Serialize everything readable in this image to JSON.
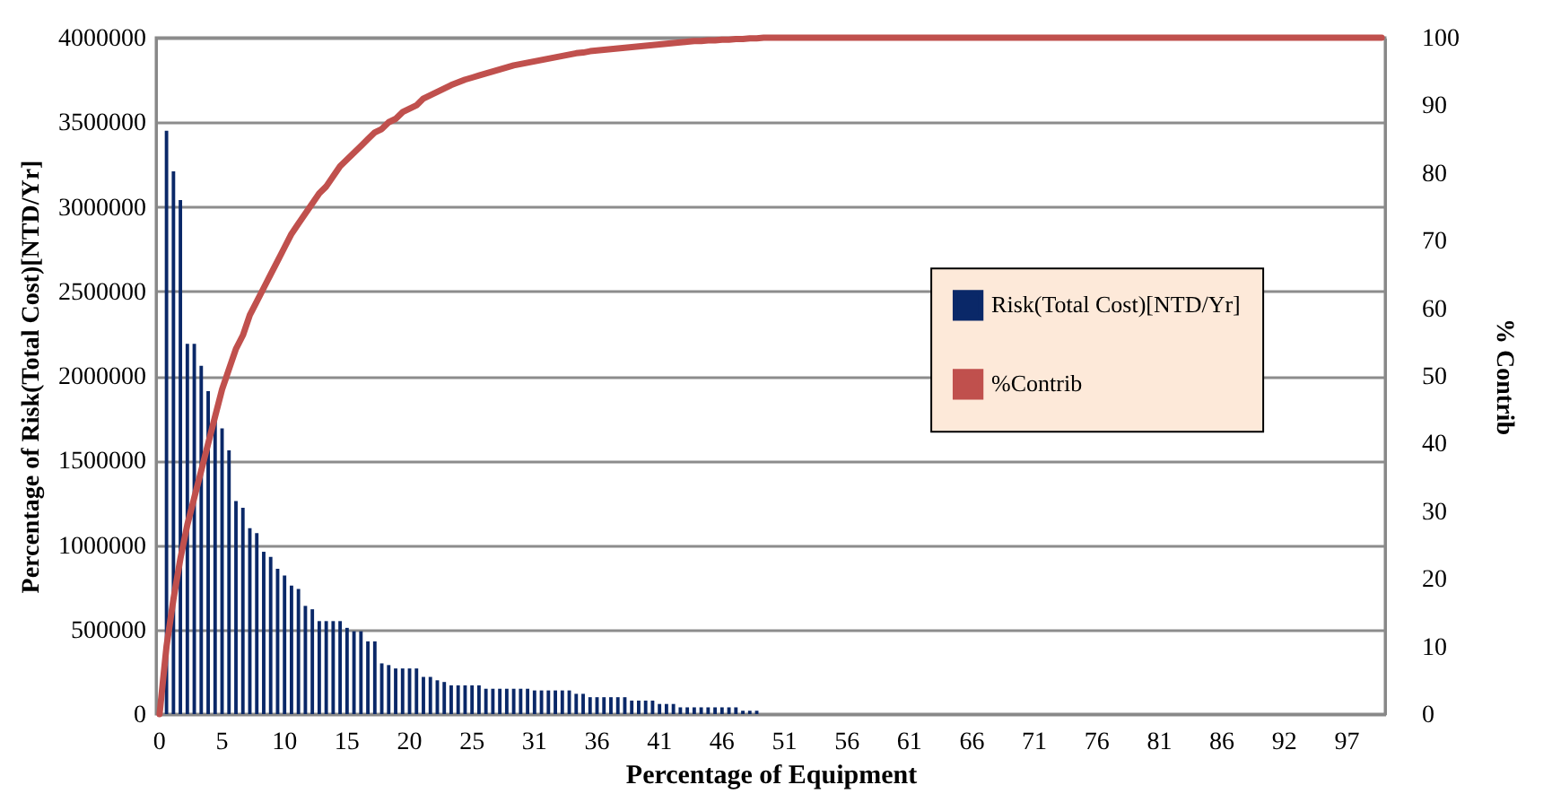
{
  "chart_data": {
    "type": "bar",
    "xlabel": "Percentage of Equipment",
    "ylabel": "Percentage of Risk(Total Cost)[NTD/Yr]",
    "y2label": "% Contrib",
    "categories": [
      "0",
      null,
      null,
      null,
      null,
      null,
      null,
      null,
      null,
      "5",
      null,
      null,
      null,
      null,
      null,
      null,
      null,
      null,
      "10",
      null,
      null,
      null,
      null,
      null,
      null,
      null,
      null,
      "15",
      null,
      null,
      null,
      null,
      null,
      null,
      null,
      null,
      "20",
      null,
      null,
      null,
      null,
      null,
      null,
      null,
      null,
      "25",
      null,
      null,
      null,
      null,
      null,
      null,
      null,
      null,
      "31",
      null,
      null,
      null,
      null,
      null,
      null,
      null,
      null,
      "36",
      null,
      null,
      null,
      null,
      null,
      null,
      null,
      null,
      "41",
      null,
      null,
      null,
      null,
      null,
      null,
      null,
      null,
      "46",
      null,
      null,
      null,
      null,
      null,
      null,
      null,
      null,
      "51",
      null,
      null,
      null,
      null,
      null,
      null,
      null,
      null,
      "56",
      null,
      null,
      null,
      null,
      null,
      null,
      null,
      null,
      "61",
      null,
      null,
      null,
      null,
      null,
      null,
      null,
      null,
      "66",
      null,
      null,
      null,
      null,
      null,
      null,
      null,
      null,
      "71",
      null,
      null,
      null,
      null,
      null,
      null,
      null,
      null,
      "76",
      null,
      null,
      null,
      null,
      null,
      null,
      null,
      null,
      "81",
      null,
      null,
      null,
      null,
      null,
      null,
      null,
      null,
      "86",
      null,
      null,
      null,
      null,
      null,
      null,
      null,
      null,
      "92",
      null,
      null,
      null,
      null,
      null,
      null,
      null,
      null,
      "97",
      null,
      null,
      null,
      null,
      null
    ],
    "series": [
      {
        "name": "Risk(Total Cost)[NTD/Yr]",
        "color": "#0a2868",
        "values": [
          0,
          3450000,
          3210000,
          3040000,
          2190000,
          2190000,
          2060000,
          1910000,
          1750000,
          1690000,
          1560000,
          1260000,
          1220000,
          1100000,
          1070000,
          960000,
          930000,
          860000,
          820000,
          760000,
          740000,
          640000,
          620000,
          550000,
          550000,
          550000,
          550000,
          510000,
          490000,
          490000,
          430000,
          430000,
          300000,
          290000,
          270000,
          270000,
          270000,
          270000,
          220000,
          220000,
          200000,
          190000,
          170000,
          170000,
          170000,
          170000,
          170000,
          150000,
          150000,
          150000,
          150000,
          150000,
          150000,
          150000,
          140000,
          140000,
          140000,
          140000,
          140000,
          140000,
          120000,
          120000,
          100000,
          100000,
          100000,
          100000,
          100000,
          100000,
          80000,
          80000,
          80000,
          80000,
          60000,
          60000,
          60000,
          40000,
          40000,
          40000,
          40000,
          40000,
          40000,
          40000,
          40000,
          40000,
          20000,
          20000,
          20000,
          0,
          0,
          0,
          0,
          0,
          0,
          0,
          0,
          0,
          0,
          0,
          0,
          0,
          0,
          0,
          0,
          0,
          0,
          0,
          0,
          0,
          0,
          0,
          0,
          0,
          0,
          0,
          0,
          0,
          0,
          0,
          0,
          0,
          0,
          0,
          0,
          0,
          0,
          0,
          0,
          0,
          0,
          0,
          0,
          0,
          0,
          0,
          0,
          0,
          0,
          0,
          0,
          0,
          0,
          0,
          0,
          0,
          0,
          0,
          0,
          0,
          0,
          0,
          0,
          0,
          0,
          0,
          0,
          0,
          0,
          0,
          0,
          0,
          0,
          0,
          0,
          0,
          0,
          0,
          0,
          0,
          0,
          0,
          0,
          0,
          0,
          0,
          0,
          0,
          0
        ]
      },
      {
        "name": "%Contrib",
        "type": "line",
        "axis": "y2",
        "color": "#c0504d",
        "values": [
          0,
          10,
          17,
          23,
          28,
          32,
          36,
          40,
          44,
          48,
          51,
          54,
          56,
          59,
          61,
          63,
          65,
          67,
          69,
          71,
          72.5,
          74,
          75.5,
          77,
          78,
          79.5,
          81,
          82,
          83,
          84,
          85,
          86,
          86.5,
          87.5,
          88,
          89,
          89.5,
          90,
          91,
          91.5,
          92,
          92.5,
          93,
          93.4,
          93.8,
          94.1,
          94.4,
          94.7,
          95,
          95.3,
          95.6,
          95.9,
          96.1,
          96.3,
          96.5,
          96.7,
          96.9,
          97.1,
          97.3,
          97.5,
          97.7,
          97.8,
          98,
          98.1,
          98.2,
          98.3,
          98.4,
          98.5,
          98.6,
          98.7,
          98.8,
          98.9,
          99,
          99.1,
          99.2,
          99.3,
          99.4,
          99.5,
          99.5,
          99.6,
          99.6,
          99.7,
          99.7,
          99.8,
          99.8,
          99.9,
          99.9,
          100,
          100,
          100,
          100,
          100,
          100,
          100,
          100,
          100,
          100,
          100,
          100,
          100,
          100,
          100,
          100,
          100,
          100,
          100,
          100,
          100,
          100,
          100,
          100,
          100,
          100,
          100,
          100,
          100,
          100,
          100,
          100,
          100,
          100,
          100,
          100,
          100,
          100,
          100,
          100,
          100,
          100,
          100,
          100,
          100,
          100,
          100,
          100,
          100,
          100,
          100,
          100,
          100,
          100,
          100,
          100,
          100,
          100,
          100,
          100,
          100,
          100,
          100,
          100,
          100,
          100,
          100,
          100,
          100,
          100,
          100,
          100,
          100,
          100,
          100,
          100,
          100,
          100,
          100,
          100,
          100,
          100,
          100,
          100,
          100,
          100,
          100,
          100,
          100,
          100
        ]
      }
    ],
    "ylim": [
      0,
      4000000
    ],
    "yticks": [
      0,
      500000,
      1000000,
      1500000,
      2000000,
      2500000,
      3000000,
      3500000,
      4000000
    ],
    "y2lim": [
      0,
      100
    ],
    "y2ticks": [
      0,
      10,
      20,
      30,
      40,
      50,
      60,
      70,
      80,
      90,
      100
    ],
    "grid": "y",
    "legend": "right",
    "marker": "none",
    "line_style": "solid"
  }
}
